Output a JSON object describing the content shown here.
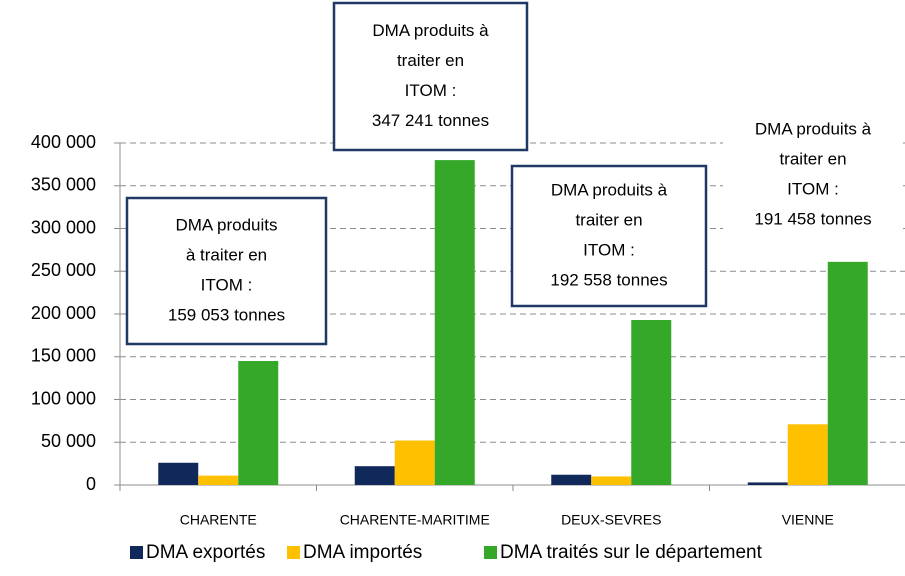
{
  "chart_data": {
    "type": "bar",
    "categories": [
      "CHARENTE",
      "CHARENTE-MARITIME",
      "DEUX-SEVRES",
      "VIENNE"
    ],
    "series": [
      {
        "name": "DMA exportés",
        "color": "#10295a",
        "values": [
          26000,
          22000,
          12000,
          3000
        ]
      },
      {
        "name": "DMA importés",
        "color": "#ffc000",
        "values": [
          11000,
          52000,
          10000,
          71000
        ]
      },
      {
        "name": "DMA traités sur le département",
        "color": "#35a82a",
        "values": [
          145000,
          380000,
          193000,
          261000
        ]
      }
    ],
    "ylim": [
      0,
      400000
    ],
    "yticks": [
      0,
      {
        "value": 50000,
        "label": "50 000"
      },
      {
        "value": 100000,
        "label": "100 000"
      },
      {
        "value": 150000,
        "label": "150 000"
      },
      {
        "value": 200000,
        "label": "200 000"
      },
      {
        "value": 250000,
        "label": "250 000"
      },
      {
        "value": 300000,
        "label": "300 000"
      },
      {
        "value": 350000,
        "label": "350 000"
      },
      {
        "value": 400000,
        "label": "400 000"
      }
    ],
    "grid": true,
    "legend": "bottom",
    "annotations": [
      {
        "lines": [
          "DMA produits",
          "à traiter en",
          "ITOM :",
          "159 053 tonnes"
        ]
      },
      {
        "lines": [
          "DMA produits à",
          "traiter en",
          "ITOM :",
          "347 241 tonnes"
        ]
      },
      {
        "lines": [
          "DMA produits à",
          "traiter en",
          "ITOM :",
          "192 558 tonnes"
        ]
      },
      {
        "lines": [
          "DMA produits à",
          "traiter en",
          "ITOM :",
          "191 458 tonnes"
        ]
      }
    ]
  }
}
